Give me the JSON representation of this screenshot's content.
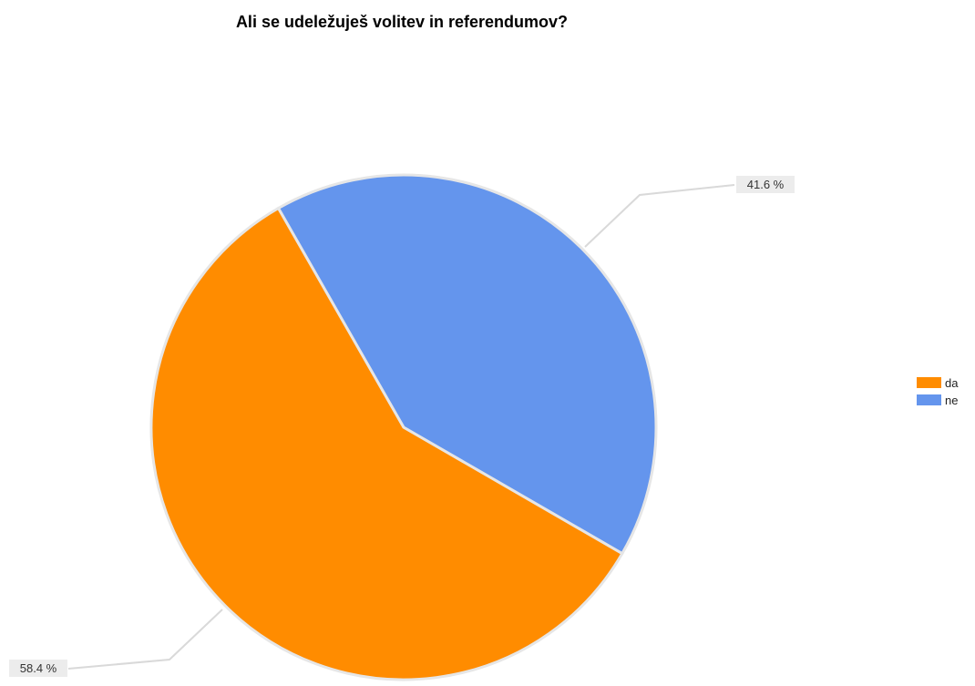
{
  "chart_data": {
    "type": "pie",
    "title": "Ali se udeležuješ volitev in referendumov?",
    "slices": [
      {
        "label": "da",
        "value": 58.4,
        "display": "58.4 %",
        "color": "#ff8c00"
      },
      {
        "label": "ne",
        "value": 41.6,
        "display": "41.6 %",
        "color": "#6495ed"
      }
    ],
    "legend": {
      "position": "right",
      "entries": [
        {
          "label": "da",
          "color": "#ff8c00"
        },
        {
          "label": "ne",
          "color": "#6495ed"
        }
      ]
    },
    "data_labels": "outside-with-leader-lines"
  }
}
